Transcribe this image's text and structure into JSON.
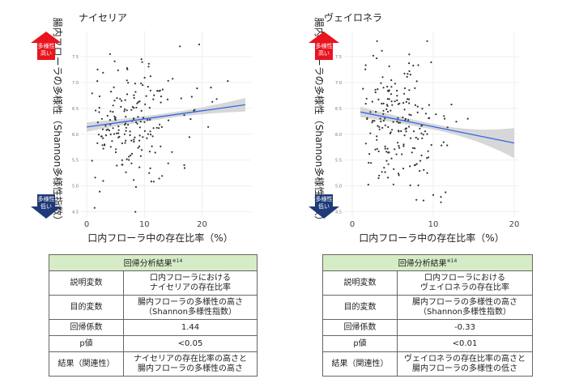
{
  "colors": {
    "high_arrow": "#e8141e",
    "low_arrow": "#1f3a78",
    "trend_line": "#3366e6",
    "ci_band": "#d0d0d0",
    "points": "#333333",
    "table_header": "#d6ecc7"
  },
  "charts": [
    {
      "title": "ナイセリア",
      "ylabel": "腸内フローラの多様性（Shannon多様性指数）",
      "xlabel": "口内フローラ中の存在比率（%）",
      "high_label": [
        "多様性",
        "高い"
      ],
      "low_label": [
        "多様性",
        "低い"
      ],
      "table": {
        "header": "回帰分析結果",
        "header_note": "※14",
        "rows": [
          {
            "label": "説明変数",
            "value": [
              "口内フローラにおける",
              "ナイセリアの存在比率"
            ]
          },
          {
            "label": "目的変数",
            "value": [
              "腸内フローラの多様性の高さ",
              "（Shannon多様性指数）"
            ]
          },
          {
            "label": "回帰係数",
            "value": [
              "1.44"
            ]
          },
          {
            "label": "p値",
            "value": [
              "<0.05"
            ]
          },
          {
            "label": "結果（関連性）",
            "value": [
              "ナイセリアの存在比率の高さと",
              "腸内フローラの多様性の高さ"
            ]
          }
        ]
      }
    },
    {
      "title": "ヴェイロネラ",
      "ylabel": "腸内フローラの多様性（Shannon多様性指数）",
      "xlabel": "口内フローラ中の存在比率（%）",
      "high_label": [
        "多様性",
        "高い"
      ],
      "low_label": [
        "多様性",
        "低い"
      ],
      "table": {
        "header": "回帰分析結果",
        "header_note": "※14",
        "rows": [
          {
            "label": "説明変数",
            "value": [
              "口内フローラにおける",
              "ヴェイロネラの存在比率"
            ]
          },
          {
            "label": "目的変数",
            "value": [
              "腸内フローラの多様性の高さ",
              "（Shannon多様性指数）"
            ]
          },
          {
            "label": "回帰係数",
            "value": [
              "-0.33"
            ]
          },
          {
            "label": "p値",
            "value": [
              "<0.01"
            ]
          },
          {
            "label": "結果（関連性）",
            "value": [
              "ヴェイロネラの存在比率の高さと",
              "腸内フローラの多様性の低さ"
            ]
          }
        ]
      }
    }
  ],
  "chart_data": [
    {
      "type": "scatter",
      "title": "ナイセリア",
      "xlabel": "口内フローラ中の存在比率（%）",
      "ylabel": "腸内フローラの多様性（Shannon多様性指数）",
      "xlim": [
        -1,
        28.5
      ],
      "ylim": [
        4.4,
        8.0
      ],
      "xticks": [
        0,
        10,
        20
      ],
      "yticks": [
        4.5,
        5.0,
        5.5,
        6.0,
        6.5,
        7.0,
        7.5
      ],
      "grid": true,
      "trend": {
        "x": [
          0,
          27.5
        ],
        "y": [
          6.14,
          6.57
        ],
        "ci_halfwidth_start": 0.09,
        "ci_halfwidth_end": 0.13
      },
      "n_points": 200,
      "x_range": [
        0,
        27.5
      ],
      "y_range": [
        4.5,
        7.8
      ]
    },
    {
      "type": "scatter",
      "title": "ヴェイロネラ",
      "xlabel": "口内フローラ中の存在比率（%）",
      "ylabel": "腸内フローラの多様性（Shannon多様性指数）",
      "xlim": [
        -1,
        20.5
      ],
      "ylim": [
        4.4,
        8.0
      ],
      "xticks": [
        0,
        10,
        20
      ],
      "yticks": [
        4.5,
        5.0,
        5.5,
        6.0,
        6.5,
        7.0,
        7.5
      ],
      "grid": true,
      "trend": {
        "x": [
          1,
          20
        ],
        "y": [
          6.43,
          5.83
        ],
        "ci_halfwidth_start": 0.1,
        "ci_halfwidth_end": 0.29
      },
      "n_points": 200,
      "x_range": [
        1,
        20
      ],
      "y_range": [
        4.5,
        7.8
      ]
    }
  ]
}
